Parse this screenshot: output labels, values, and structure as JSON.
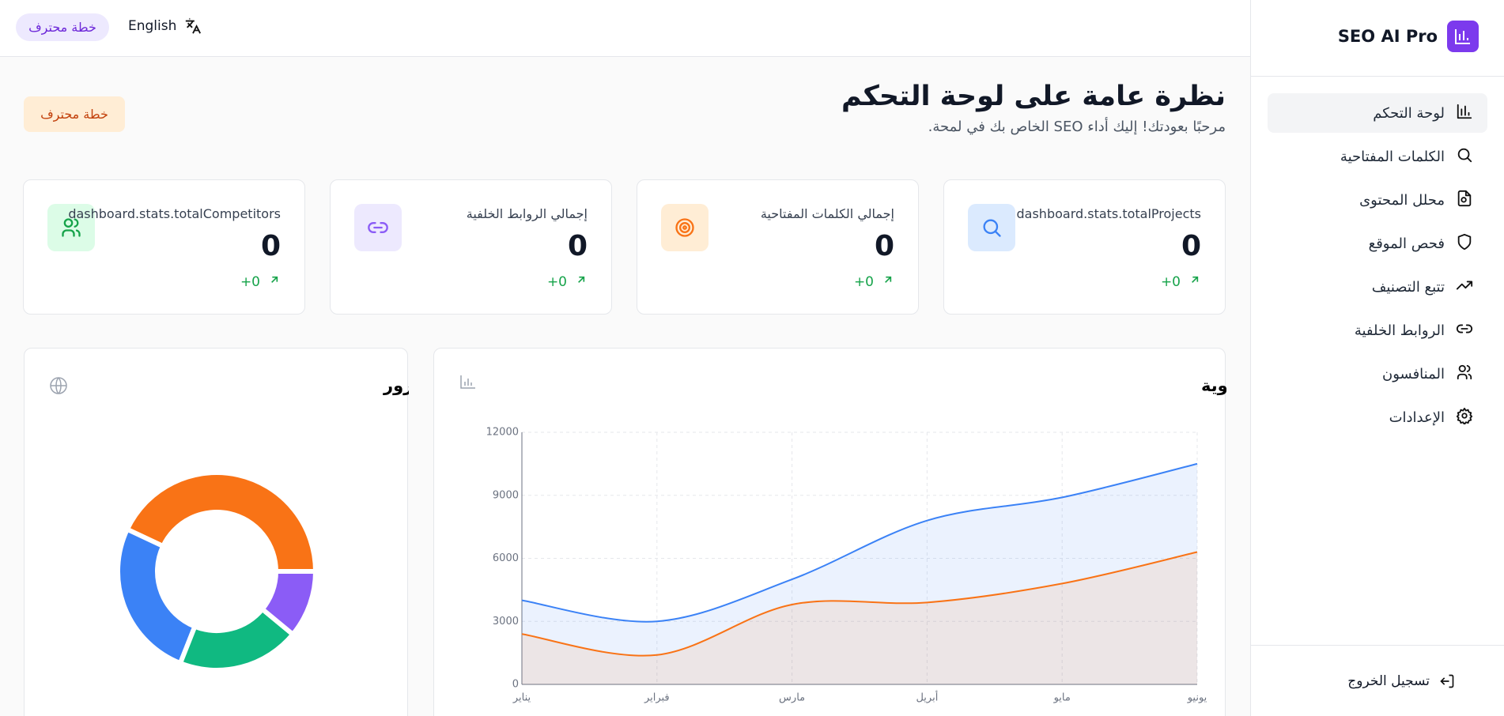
{
  "header": {
    "plan": "خطة محترف",
    "language": "English"
  },
  "sidebar": {
    "brand": "SEO AI Pro",
    "nav": [
      "لوحة التحكم",
      "الكلمات المفتاحية",
      "محلل المحتوى",
      "فحص الموقع",
      "تتبع التصنيف",
      "الروابط الخلفية",
      "المنافسون",
      "الإعدادات"
    ],
    "logout": "تسجيل الخروج"
  },
  "page": {
    "title": "نظرة عامة على لوحة التحكم",
    "subtitle": "مرحبًا بعودتك! إليك أداء SEO الخاص بك في لمحة.",
    "badge": "خطة محترف"
  },
  "stats": [
    {
      "label": "dashboard.stats.totalProjects",
      "value": 0,
      "change": "+0"
    },
    {
      "label": "إجمالي الكلمات المفتاحية",
      "value": 0,
      "change": "+0"
    },
    {
      "label": "إجمالي الروابط الخلفية",
      "value": 0,
      "change": "+0"
    },
    {
      "label": "dashboard.stats.totalCompetitors",
      "value": 0,
      "change": "+0"
    }
  ],
  "chart_data": [
    {
      "type": "area",
      "title": "اتجاه حركة المرور العضوية",
      "categories": [
        "يناير",
        "فبراير",
        "مارس",
        "أبريل",
        "مايو",
        "يونيو"
      ],
      "series": [
        {
          "color": "#3b82f6",
          "values": [
            4000,
            3000,
            5000,
            7800,
            8900,
            10500
          ]
        },
        {
          "color": "#f97316",
          "values": [
            2400,
            1400,
            3800,
            3900,
            4800,
            6300
          ]
        }
      ],
      "ylim": [
        0,
        12000
      ],
      "yticks": [
        0,
        3000,
        6000,
        9000,
        12000
      ],
      "grid": true
    },
    {
      "type": "pie",
      "title": "مصادر حركة المرور",
      "values": [
        43,
        26,
        20,
        11
      ],
      "colors": [
        "#f97316",
        "#3b82f6",
        "#10b981",
        "#8b5cf6"
      ]
    }
  ]
}
